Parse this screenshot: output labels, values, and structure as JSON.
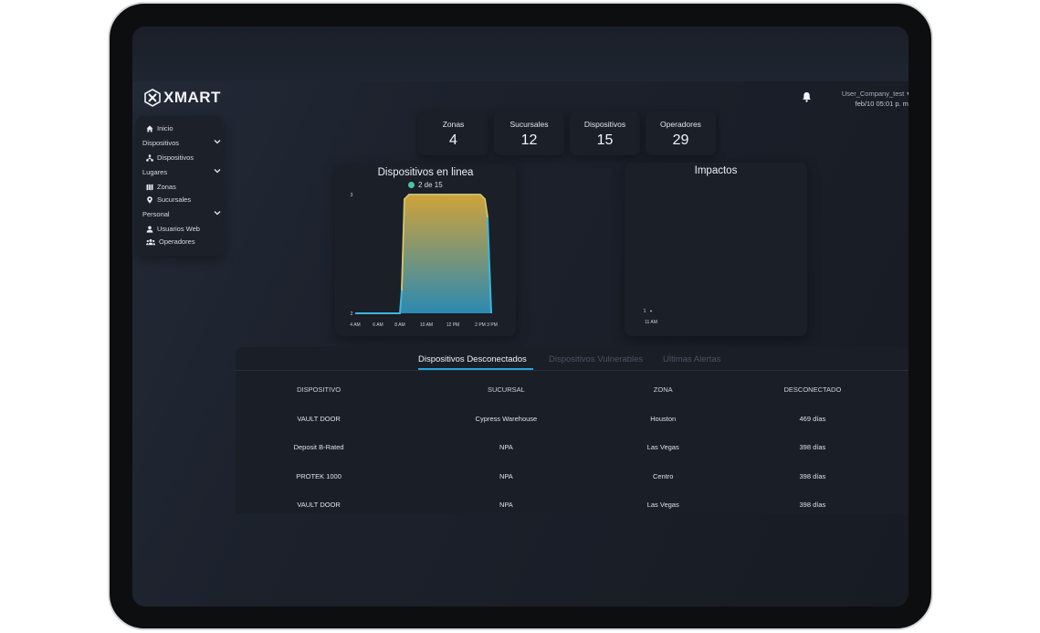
{
  "brand": {
    "name": "XMART"
  },
  "header": {
    "user": "User_Company_test",
    "datetime": "feb/10 05:01 p. m."
  },
  "sidebar": {
    "items": [
      {
        "label": "Inicio",
        "icon": "home-icon"
      },
      {
        "label": "Dispositivos",
        "section": true
      },
      {
        "label": "Dispositivos",
        "icon": "network-icon"
      },
      {
        "label": "Lugares",
        "section": true
      },
      {
        "label": "Zonas",
        "icon": "map-icon"
      },
      {
        "label": "Sucursales",
        "icon": "location-pin-icon"
      },
      {
        "label": "Personal",
        "section": true
      },
      {
        "label": "Usuarios Web",
        "icon": "user-icon"
      },
      {
        "label": "Operadores",
        "icon": "group-icon"
      }
    ]
  },
  "stats": [
    {
      "label": "Zonas",
      "value": "4"
    },
    {
      "label": "Sucursales",
      "value": "12"
    },
    {
      "label": "Dispositivos",
      "value": "15"
    },
    {
      "label": "Operadores",
      "value": "29"
    }
  ],
  "online_chart": {
    "title": "Dispositivos en linea",
    "legend": "2 de 15",
    "legend_color": "#4fc3a1"
  },
  "impacts_chart": {
    "title": "Impactos"
  },
  "chart_data": [
    {
      "type": "area",
      "title": "Dispositivos en linea",
      "x": [
        "4 AM",
        "6 AM",
        "8 AM",
        "10 AM",
        "12 PM",
        "2 PM",
        "3 PM"
      ],
      "series": [
        {
          "name": "2 de 15",
          "values": [
            2,
            2,
            2,
            3,
            3,
            3,
            2
          ]
        }
      ],
      "y_ticks": [
        "2",
        "3"
      ],
      "ylim": [
        2,
        3
      ],
      "grid": false
    },
    {
      "type": "scatter",
      "title": "Impactos",
      "x_ticks": [
        "11 AM"
      ],
      "y_ticks": [
        "1"
      ],
      "points": [
        {
          "x": "11 AM",
          "y": 1
        }
      ],
      "grid": false
    }
  ],
  "tabs": [
    {
      "label": "Dispositivos Desconectados",
      "active": true
    },
    {
      "label": "Dispositivos Vulnerables",
      "active": false
    },
    {
      "label": "Ultimas Alertas",
      "active": false
    }
  ],
  "table": {
    "headers": [
      "DISPOSITIVO",
      "SUCURSAL",
      "ZONA",
      "DESCONECTADO"
    ],
    "rows": [
      [
        "VAULT DOOR",
        "Cypress Warehouse",
        "Houston",
        "469 días"
      ],
      [
        "Deposit B-Rated",
        "NPA",
        "Las Vegas",
        "398 días"
      ],
      [
        "PROTEK 1000",
        "NPA",
        "Centro",
        "398 días"
      ],
      [
        "VAULT DOOR",
        "NPA",
        "Las Vegas",
        "398 días"
      ]
    ]
  },
  "colors": {
    "accent": "#2aa3d6",
    "area_top": "#d9a93a",
    "area_bottom": "#2d8fb8"
  }
}
